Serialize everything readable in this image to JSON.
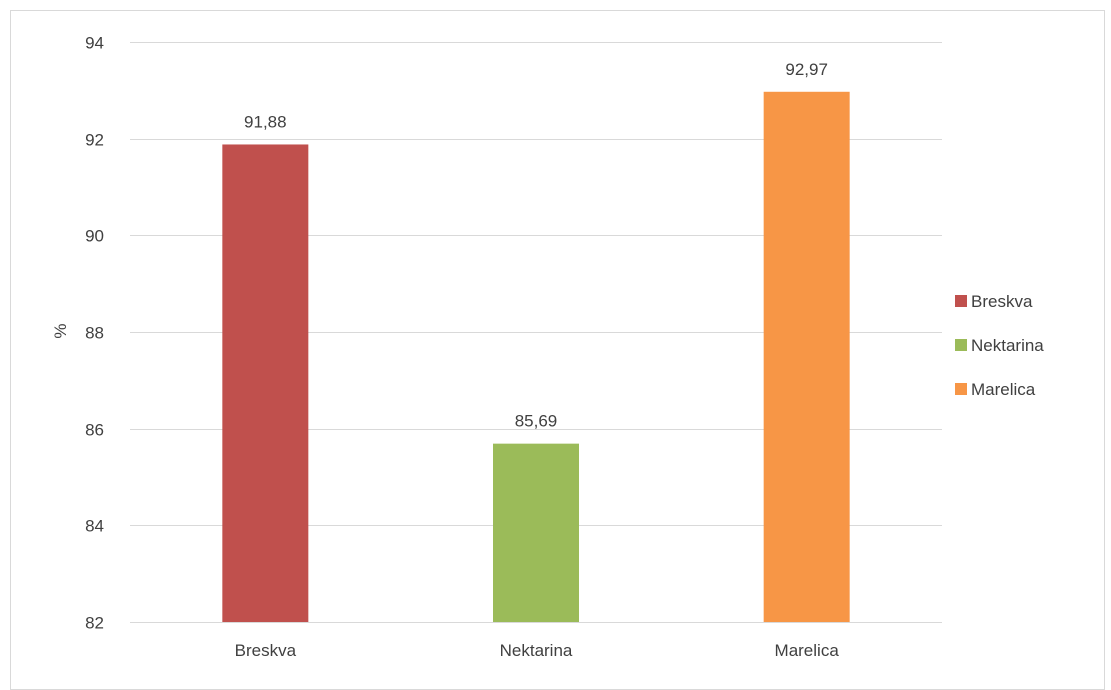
{
  "chart_data": {
    "type": "bar",
    "title": "",
    "xlabel": "",
    "ylabel": "%",
    "categories": [
      "Breskva",
      "Nektarina",
      "Marelica"
    ],
    "values": [
      91.88,
      85.69,
      92.97
    ],
    "value_labels": [
      "91,88",
      "85,69",
      "92,97"
    ],
    "colors": [
      "#c0504d",
      "#9bbb59",
      "#f79646"
    ],
    "ylim": [
      82,
      94
    ],
    "yticks": [
      82,
      84,
      86,
      88,
      90,
      92,
      94
    ],
    "ytick_labels": [
      "82",
      "84",
      "86",
      "88",
      "90",
      "92",
      "94"
    ],
    "grid": true,
    "legend": {
      "position": "right",
      "entries": [
        "Breskva",
        "Nektarina",
        "Marelica"
      ]
    }
  }
}
